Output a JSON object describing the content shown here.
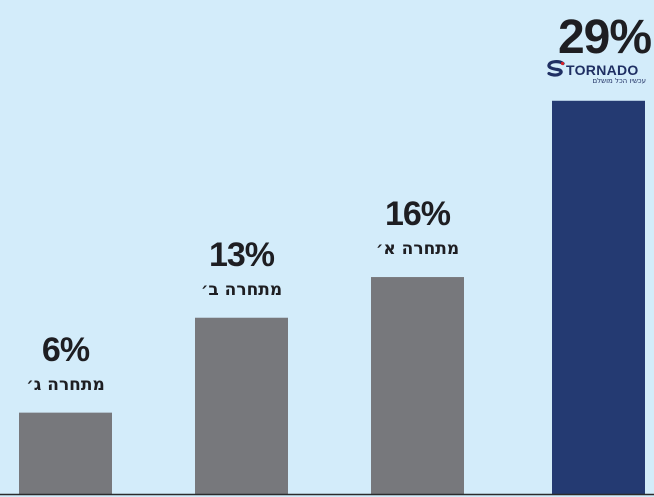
{
  "chart_data": {
    "type": "bar",
    "title": "",
    "xlabel": "",
    "ylabel": "",
    "ylim": [
      0,
      29.5
    ],
    "grid": false,
    "legend": "none",
    "categories": [
      "מתחרה ג׳",
      "מתחרה ב׳",
      "מתחרה א׳",
      ""
    ],
    "values": [
      6,
      13,
      16,
      29
    ],
    "value_labels": [
      "6%",
      "13%",
      "16%",
      "29%"
    ],
    "bar_colors": [
      "#77787c",
      "#77787c",
      "#77787c",
      "#243a72"
    ]
  },
  "brand": {
    "name": "TORNADO",
    "tagline": "עכשיו הכל מושלם",
    "icon": "tornado-logo-icon",
    "color": "#1f2f63"
  },
  "colors": {
    "background": "#d3ecfa",
    "text": "#1e1e22",
    "baseline": "#2b2b2b"
  }
}
